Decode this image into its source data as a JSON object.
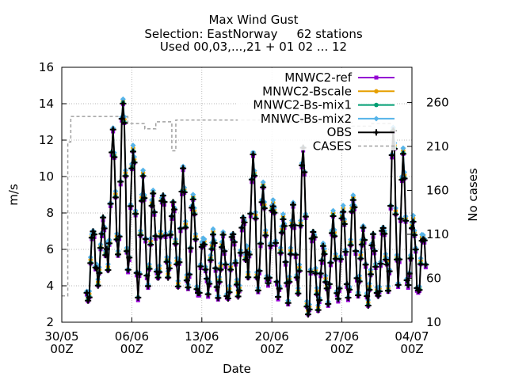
{
  "chart_data": {
    "type": "line",
    "title": "Max Wind Gust",
    "subtitle": [
      "Selection: EastNorway     62 stations",
      "Used 00,03,...,21 + 01 02 ... 12"
    ],
    "xlabel": "Date",
    "ylabel": "m/s",
    "y2label": "No cases",
    "x_range": [
      "2023-05-30 00Z",
      "2023-07-04 00Z"
    ],
    "x_tick_labels": [
      {
        "line1": "30/05",
        "line2": "00Z"
      },
      {
        "line1": "06/06",
        "line2": "00Z"
      },
      {
        "line1": "13/06",
        "line2": "00Z"
      },
      {
        "line1": "20/06",
        "line2": "00Z"
      },
      {
        "line1": "27/06",
        "line2": "00Z"
      },
      {
        "line1": "04/07",
        "line2": "00Z"
      }
    ],
    "ylim": [
      2,
      16
    ],
    "y_ticks": [
      "2",
      "4",
      "6",
      "8",
      "10",
      "12",
      "14",
      "16"
    ],
    "y2lim": [
      10,
      300
    ],
    "y2_ticks": [
      "10",
      "60",
      "110",
      "160",
      "210",
      "260"
    ],
    "grid": true,
    "legend_position": "top-right",
    "obs_daily": [
      {
        "min": 3.0,
        "max": 7.2
      },
      {
        "min": 4.2,
        "max": 7.6
      },
      {
        "min": 5.0,
        "max": 12.4
      },
      {
        "min": 5.5,
        "max": 14.2
      },
      {
        "min": 4.8,
        "max": 11.5
      },
      {
        "min": 3.6,
        "max": 9.8
      },
      {
        "min": 4.0,
        "max": 9.0
      },
      {
        "min": 4.2,
        "max": 9.2
      },
      {
        "min": 4.5,
        "max": 8.6
      },
      {
        "min": 4.2,
        "max": 10.2
      },
      {
        "min": 3.8,
        "max": 8.8
      },
      {
        "min": 3.4,
        "max": 6.5
      },
      {
        "min": 3.7,
        "max": 6.7
      },
      {
        "min": 3.5,
        "max": 6.6
      },
      {
        "min": 3.1,
        "max": 7.0
      },
      {
        "min": 3.3,
        "max": 7.9
      },
      {
        "min": 4.7,
        "max": 11.0
      },
      {
        "min": 3.8,
        "max": 9.3
      },
      {
        "min": 3.9,
        "max": 8.6
      },
      {
        "min": 3.4,
        "max": 7.7
      },
      {
        "min": 3.3,
        "max": 8.2
      },
      {
        "min": 3.5,
        "max": 11.6
      },
      {
        "min": 2.2,
        "max": 7.2
      },
      {
        "min": 2.8,
        "max": 6.1
      },
      {
        "min": 3.2,
        "max": 7.6
      },
      {
        "min": 3.1,
        "max": 8.2
      },
      {
        "min": 3.2,
        "max": 8.9
      },
      {
        "min": 3.7,
        "max": 7.0
      },
      {
        "min": 3.0,
        "max": 6.7
      },
      {
        "min": 3.2,
        "max": 7.4
      },
      {
        "min": 3.7,
        "max": 12.6
      },
      {
        "min": 4.3,
        "max": 11.0
      },
      {
        "min": 4.0,
        "max": 7.5
      },
      {
        "min": 3.5,
        "max": 6.8
      }
    ],
    "cases_steps": [
      {
        "day": 0.0,
        "value": 40
      },
      {
        "day": 0.6,
        "value": 215
      },
      {
        "day": 0.9,
        "value": 244
      },
      {
        "day": 6.6,
        "value": 236
      },
      {
        "day": 8.3,
        "value": 230
      },
      {
        "day": 9.4,
        "value": 238
      },
      {
        "day": 10.6,
        "value": 238
      },
      {
        "day": 11.0,
        "value": 205
      },
      {
        "day": 11.4,
        "value": 240
      },
      {
        "day": 20.0,
        "value": 238
      },
      {
        "day": 24.0,
        "value": 237
      },
      {
        "day": 29.0,
        "value": 233
      },
      {
        "day": 31.0,
        "value": 236
      },
      {
        "day": 33.0,
        "value": 236
      }
    ],
    "series": [
      {
        "name": "MNWC2-ref",
        "color": "#9400d3",
        "point": "filled-square",
        "offset": -0.15
      },
      {
        "name": "MNWC2-Bscale",
        "color": "#e69f00",
        "point": "filled-circle",
        "offset": 0.2
      },
      {
        "name": "MNWC2-Bs-mix1",
        "color": "#009e73",
        "point": "filled-pentagon",
        "offset": 0.05
      },
      {
        "name": "MNWC-Bs-mix2",
        "color": "#56b4e9",
        "point": "filled-diamond",
        "offset": 0.35
      },
      {
        "name": "OBS",
        "color": "#000000",
        "point": "plus",
        "offset": 0.0
      },
      {
        "name": "CASES",
        "color": "#a0a0a0",
        "point": "none",
        "dashed": true,
        "axis": "y2"
      }
    ]
  }
}
